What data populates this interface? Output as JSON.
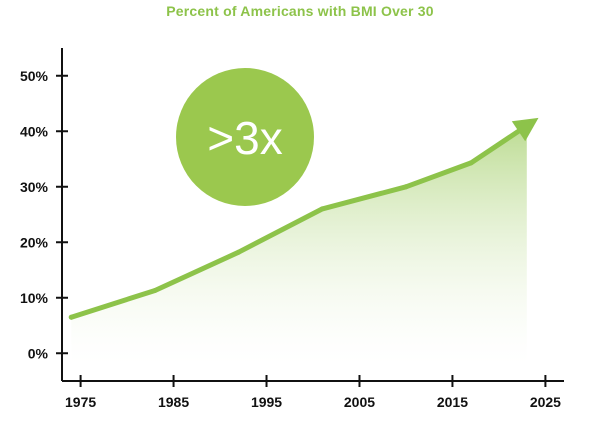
{
  "chart_data": {
    "type": "area",
    "title": "Percent of Americans with BMI Over 30",
    "xlabel": "",
    "ylabel": "",
    "xlim": [
      1973,
      2027
    ],
    "ylim": [
      -5,
      55
    ],
    "x_ticks": [
      1975,
      1985,
      1995,
      2005,
      2015,
      2025
    ],
    "x_tick_labels": [
      "1975",
      "1985",
      "1995",
      "2005",
      "2015",
      "2025"
    ],
    "y_ticks": [
      0,
      10,
      20,
      30,
      40,
      50
    ],
    "y_tick_labels": [
      "0%",
      "10%",
      "20%",
      "30%",
      "40%",
      "50%"
    ],
    "series": [
      {
        "name": "BMI over 30",
        "x": [
          1974,
          1983,
          1992,
          2001,
          2010,
          2017,
          2023
        ],
        "values": [
          6.5,
          11.3,
          18.2,
          26.0,
          30.0,
          34.3,
          41.0
        ]
      }
    ],
    "annotation": ">3x",
    "grid": false,
    "colors": {
      "accent": "#8dc34a",
      "badge": "#9bc84e",
      "axis": "#111111"
    }
  }
}
